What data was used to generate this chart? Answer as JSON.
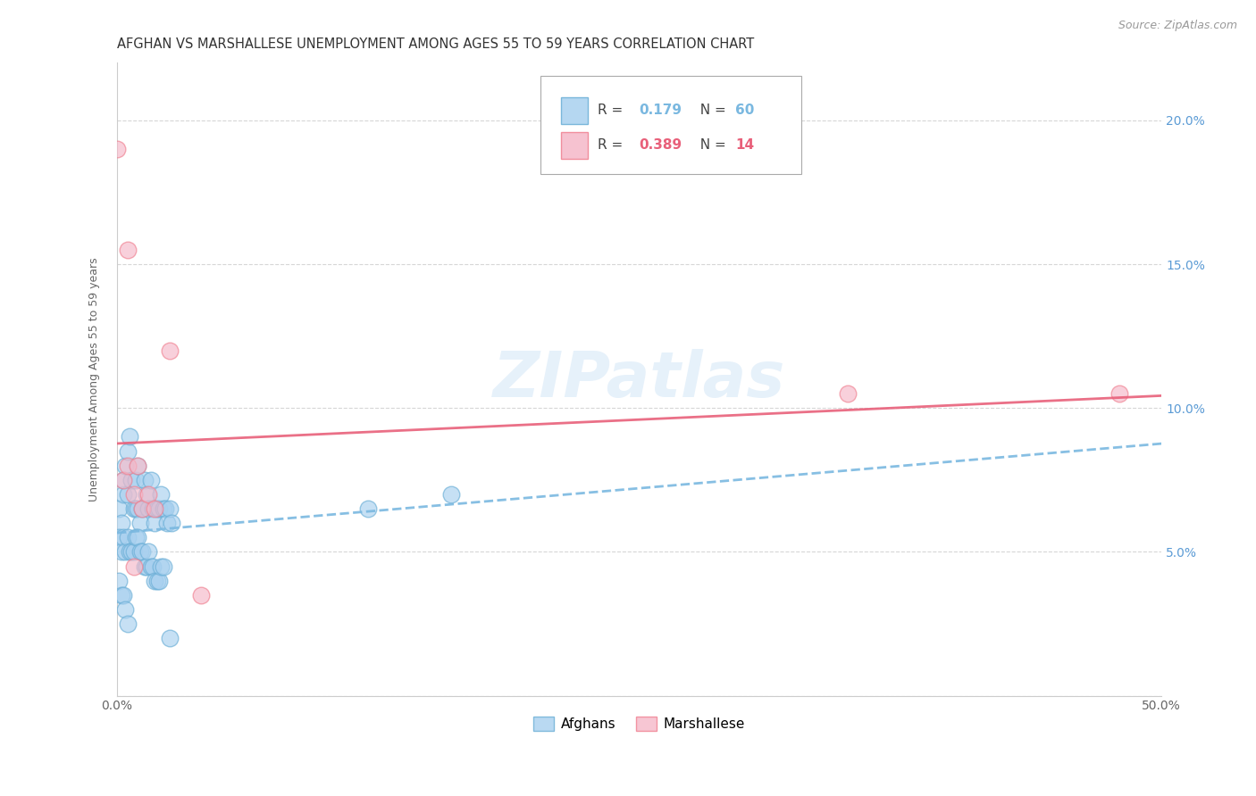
{
  "title": "AFGHAN VS MARSHALLESE UNEMPLOYMENT AMONG AGES 55 TO 59 YEARS CORRELATION CHART",
  "source": "Source: ZipAtlas.com",
  "ylabel": "Unemployment Among Ages 55 to 59 years",
  "xlim": [
    0,
    0.5
  ],
  "ylim": [
    0,
    0.22
  ],
  "afghans_x": [
    0.001,
    0.002,
    0.003,
    0.003,
    0.004,
    0.005,
    0.005,
    0.006,
    0.007,
    0.008,
    0.009,
    0.009,
    0.01,
    0.01,
    0.011,
    0.012,
    0.013,
    0.014,
    0.015,
    0.016,
    0.017,
    0.018,
    0.019,
    0.02,
    0.021,
    0.022,
    0.023,
    0.024,
    0.025,
    0.026,
    0.001,
    0.002,
    0.003,
    0.004,
    0.005,
    0.006,
    0.007,
    0.008,
    0.009,
    0.01,
    0.011,
    0.012,
    0.013,
    0.014,
    0.015,
    0.016,
    0.017,
    0.018,
    0.019,
    0.02,
    0.001,
    0.002,
    0.003,
    0.004,
    0.005,
    0.021,
    0.022,
    0.025,
    0.12,
    0.16
  ],
  "afghans_y": [
    0.065,
    0.06,
    0.07,
    0.075,
    0.08,
    0.085,
    0.07,
    0.09,
    0.075,
    0.065,
    0.075,
    0.065,
    0.08,
    0.065,
    0.06,
    0.065,
    0.075,
    0.07,
    0.065,
    0.075,
    0.065,
    0.06,
    0.065,
    0.065,
    0.07,
    0.065,
    0.065,
    0.06,
    0.065,
    0.06,
    0.055,
    0.05,
    0.055,
    0.05,
    0.055,
    0.05,
    0.05,
    0.05,
    0.055,
    0.055,
    0.05,
    0.05,
    0.045,
    0.045,
    0.05,
    0.045,
    0.045,
    0.04,
    0.04,
    0.04,
    0.04,
    0.035,
    0.035,
    0.03,
    0.025,
    0.045,
    0.045,
    0.02,
    0.065,
    0.07
  ],
  "marshallese_x": [
    0.0,
    0.003,
    0.005,
    0.008,
    0.01,
    0.012,
    0.015,
    0.018,
    0.025,
    0.04,
    0.005,
    0.008,
    0.35,
    0.48
  ],
  "marshallese_y": [
    0.19,
    0.075,
    0.08,
    0.07,
    0.08,
    0.065,
    0.07,
    0.065,
    0.12,
    0.035,
    0.155,
    0.045,
    0.105,
    0.105
  ],
  "afghan_R": 0.179,
  "afghan_N": 60,
  "marshallese_R": 0.389,
  "marshallese_N": 14,
  "afghan_color": "#a8d0ef",
  "marshallese_color": "#f5b8c8",
  "afghan_edge_color": "#6aaed6",
  "marshallese_edge_color": "#f08090",
  "afghan_line_color": "#7ab8e0",
  "marshallese_line_color": "#e8607a",
  "watermark": "ZIPatlas",
  "title_fontsize": 10.5,
  "axis_label_fontsize": 9,
  "tick_fontsize": 10,
  "legend_fontsize": 11
}
